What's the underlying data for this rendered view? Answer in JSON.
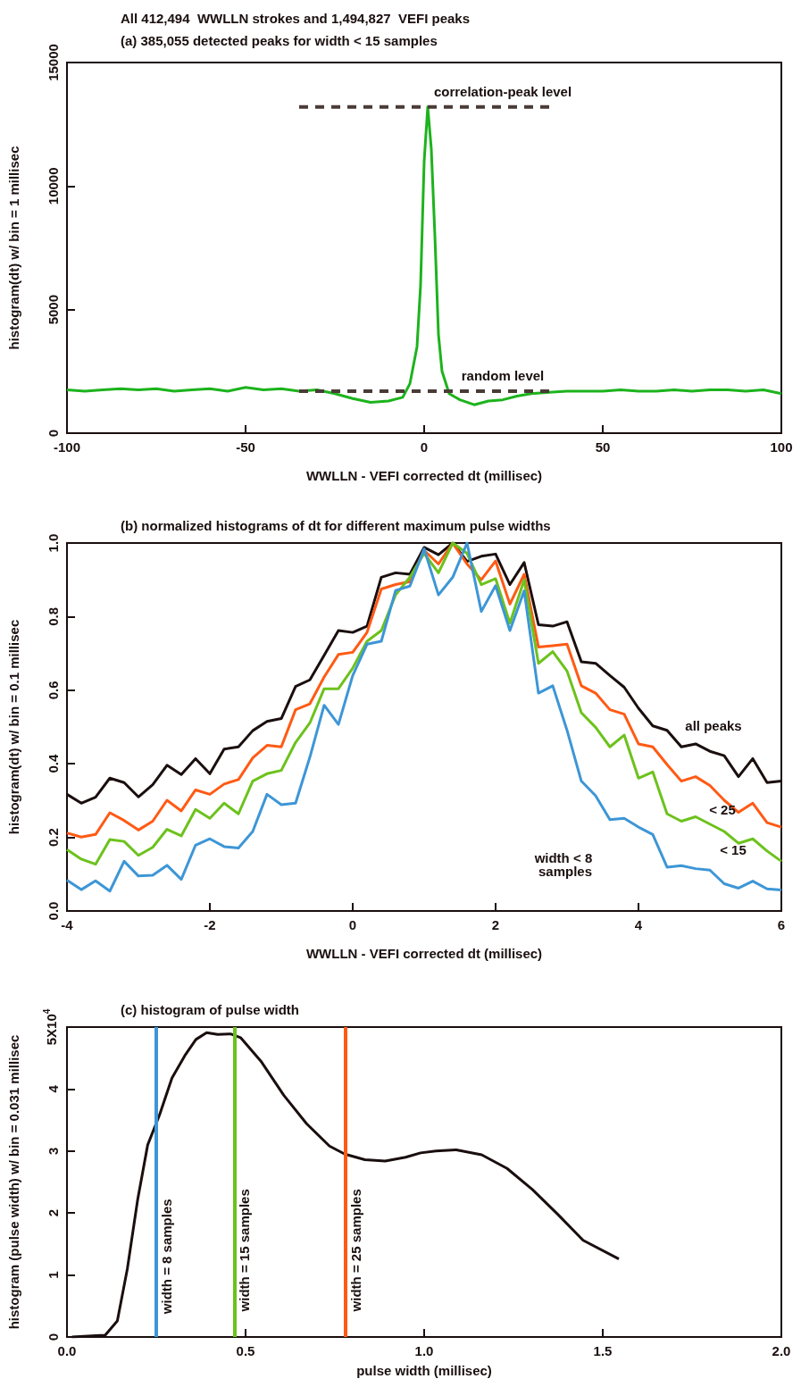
{
  "chart_data": [
    {
      "type": "line",
      "title": "All 412,494  WWLLN strokes and 1,494,827  VEFI peaks",
      "subtitle": "(a) 385,055 detected peaks for width < 15 samples",
      "xlabel": "WWLLN - VEFI corrected dt (millisec)",
      "ylabel": "histogram(dt) w/ bin = 1 millisec",
      "xlim": [
        -100,
        100
      ],
      "xticks": [
        -100,
        -50,
        0,
        50,
        100
      ],
      "ylim": [
        0,
        15000
      ],
      "yticks": [
        0,
        5000,
        10000,
        15000
      ],
      "legend": false,
      "series": [
        {
          "color": "#1db31d",
          "x": [
            -100,
            -95,
            -90,
            -85,
            -80,
            -75,
            -70,
            -65,
            -60,
            -55,
            -50,
            -45,
            -40,
            -35,
            -30,
            -25,
            -20,
            -15,
            -10,
            -6,
            -4,
            -2,
            -1,
            0,
            1,
            2,
            3,
            4,
            5,
            7,
            10,
            14,
            18,
            22,
            26,
            30,
            35,
            40,
            45,
            50,
            55,
            60,
            65,
            70,
            75,
            80,
            85,
            90,
            95,
            100
          ],
          "values": [
            1750,
            1700,
            1750,
            1800,
            1750,
            1800,
            1700,
            1750,
            1800,
            1700,
            1850,
            1750,
            1800,
            1700,
            1750,
            1600,
            1400,
            1250,
            1300,
            1450,
            2000,
            3500,
            6000,
            11000,
            13200,
            11500,
            8000,
            4000,
            2500,
            1600,
            1350,
            1150,
            1300,
            1350,
            1500,
            1600,
            1650,
            1700,
            1700,
            1700,
            1750,
            1700,
            1700,
            1750,
            1700,
            1750,
            1750,
            1700,
            1750,
            1600
          ]
        },
        {
          "color": "#4a3b36",
          "line_style": "dashed",
          "x": [
            -35,
            35
          ],
          "values": [
            13200,
            13200
          ]
        },
        {
          "color": "#4a3b36",
          "line_style": "dashed",
          "x": [
            -35,
            35
          ],
          "values": [
            1700,
            1700
          ]
        }
      ],
      "annotations": [
        {
          "text": "correlation-peak level",
          "x": 22,
          "y": 13200
        },
        {
          "text": "random level",
          "x": 22,
          "y": 1700
        }
      ]
    },
    {
      "type": "line",
      "title": "(b) normalized histograms of dt for different maximum pulse widths",
      "xlabel": "WWLLN - VEFI corrected dt (millisec)",
      "ylabel": "histogram(dt) w/ bin = 0.1 millisec",
      "xlim": [
        -4,
        6
      ],
      "xticks": [
        -4,
        -2,
        0,
        2,
        4,
        6
      ],
      "ylim": [
        0,
        1
      ],
      "yticks": [
        {
          "value": 0,
          "label": "0.0"
        },
        {
          "value": 0.2,
          "label": "0.2"
        },
        {
          "value": 0.4,
          "label": "0.4"
        },
        {
          "value": 0.6,
          "label": "0.6"
        },
        {
          "value": 0.8,
          "label": "0.8"
        },
        {
          "value": 1,
          "label": "1.0"
        }
      ],
      "legend": false,
      "x": [
        -4,
        -3.8,
        -3.6,
        -3.4,
        -3.2,
        -3,
        -2.8,
        -2.6,
        -2.4,
        -2.2,
        -2,
        -1.8,
        -1.6,
        -1.4,
        -1.2,
        -1,
        -0.8,
        -0.6,
        -0.4,
        -0.2,
        0,
        0.2,
        0.4,
        0.6,
        0.8,
        1,
        1.2,
        1.4,
        1.6,
        1.8,
        2,
        2.2,
        2.4,
        2.6,
        2.8,
        3,
        3.2,
        3.4,
        3.6,
        3.8,
        4,
        4.2,
        4.4,
        4.6,
        4.8,
        5,
        5.2,
        5.4,
        5.6,
        5.8,
        6
      ],
      "series": [
        {
          "name": "all peaks",
          "color": "#1a0e0e",
          "values": [
            0.317,
            0.293,
            0.309,
            0.361,
            0.349,
            0.31,
            0.343,
            0.396,
            0.371,
            0.414,
            0.373,
            0.44,
            0.446,
            0.49,
            0.515,
            0.523,
            0.61,
            0.628,
            0.695,
            0.762,
            0.757,
            0.774,
            0.907,
            0.919,
            0.915,
            0.988,
            0.968,
            1.0,
            0.95,
            0.964,
            0.97,
            0.887,
            0.947,
            0.778,
            0.774,
            0.786,
            0.677,
            0.673,
            0.64,
            0.608,
            0.551,
            0.503,
            0.491,
            0.446,
            0.454,
            0.434,
            0.422,
            0.365,
            0.414,
            0.349,
            0.353
          ]
        },
        {
          "name": "< 25",
          "color": "#ff5a14",
          "values": [
            0.212,
            0.201,
            0.208,
            0.267,
            0.246,
            0.22,
            0.244,
            0.301,
            0.272,
            0.329,
            0.317,
            0.345,
            0.357,
            0.416,
            0.45,
            0.446,
            0.547,
            0.563,
            0.636,
            0.697,
            0.703,
            0.757,
            0.875,
            0.887,
            0.895,
            0.98,
            0.943,
            1.0,
            0.943,
            0.9,
            0.951,
            0.834,
            0.915,
            0.717,
            0.721,
            0.725,
            0.612,
            0.592,
            0.547,
            0.535,
            0.454,
            0.446,
            0.398,
            0.353,
            0.365,
            0.341,
            0.301,
            0.268,
            0.293,
            0.24,
            0.228
          ]
        },
        {
          "name": "< 15",
          "color": "#6cc21c",
          "values": [
            0.167,
            0.141,
            0.127,
            0.194,
            0.189,
            0.151,
            0.173,
            0.222,
            0.204,
            0.276,
            0.252,
            0.293,
            0.264,
            0.353,
            0.373,
            0.382,
            0.458,
            0.511,
            0.604,
            0.604,
            0.66,
            0.733,
            0.762,
            0.859,
            0.907,
            0.972,
            0.919,
            1.0,
            0.972,
            0.887,
            0.903,
            0.782,
            0.9,
            0.673,
            0.705,
            0.652,
            0.539,
            0.499,
            0.446,
            0.478,
            0.361,
            0.378,
            0.264,
            0.244,
            0.256,
            0.236,
            0.216,
            0.184,
            0.196,
            0.163,
            0.135
          ]
        },
        {
          "name": "width < 8 samples",
          "color": "#3d96d6",
          "values": [
            0.084,
            0.058,
            0.082,
            0.054,
            0.135,
            0.095,
            0.097,
            0.124,
            0.086,
            0.179,
            0.196,
            0.175,
            0.171,
            0.216,
            0.317,
            0.289,
            0.293,
            0.418,
            0.559,
            0.507,
            0.64,
            0.725,
            0.733,
            0.871,
            0.883,
            0.984,
            0.859,
            0.907,
            1.0,
            0.814,
            0.884,
            0.762,
            0.87,
            0.592,
            0.612,
            0.491,
            0.353,
            0.313,
            0.248,
            0.252,
            0.228,
            0.208,
            0.119,
            0.123,
            0.115,
            0.111,
            0.074,
            0.062,
            0.081,
            0.06,
            0.057
          ]
        }
      ]
    },
    {
      "type": "line",
      "title": "(c) histogram of pulse width",
      "xlabel": "pulse width (millisec)",
      "ylabel": "histogram (pulse width) w/ bin = 0.031 millisec",
      "xlim": [
        0,
        2
      ],
      "xticks": [
        {
          "value": 0,
          "label": "0.0"
        },
        0.5,
        {
          "value": 1,
          "label": "1.0"
        },
        1.5,
        {
          "value": 2,
          "label": "2.0"
        }
      ],
      "ylim": [
        0,
        5
      ],
      "yticks": [
        0,
        1,
        2,
        3,
        4,
        {
          "value": 5,
          "label": "5X10$^{4}$"
        }
      ],
      "legend": false,
      "series": [
        {
          "color": "#1a0e0e",
          "x": [
            0.014,
            0.081,
            0.107,
            0.141,
            0.169,
            0.198,
            0.226,
            0.259,
            0.294,
            0.33,
            0.361,
            0.391,
            0.422,
            0.458,
            0.486,
            0.543,
            0.607,
            0.671,
            0.735,
            0.778,
            0.834,
            0.891,
            0.948,
            0.99,
            1.033,
            1.09,
            1.161,
            1.232,
            1.303,
            1.374,
            1.445,
            1.545
          ],
          "values": [
            0,
            0.02,
            0.03,
            0.26,
            1.1,
            2.22,
            3.1,
            3.58,
            4.18,
            4.54,
            4.8,
            4.91,
            4.88,
            4.89,
            4.83,
            4.45,
            3.9,
            3.44,
            3.08,
            2.95,
            2.86,
            2.84,
            2.9,
            2.97,
            3.0,
            3.02,
            2.94,
            2.72,
            2.38,
            1.98,
            1.56,
            1.26
          ]
        }
      ],
      "ref_lines": [
        {
          "axis": "x",
          "value": 0.249,
          "color": "#3d96d6"
        },
        {
          "axis": "x",
          "value": 0.466,
          "color": "#6cc21c"
        },
        {
          "axis": "x",
          "value": 0.779,
          "color": "#ff5a14"
        }
      ],
      "annotations": [
        {
          "text": "width = 8 samples",
          "x": 0.249,
          "y": 1.3
        },
        {
          "text": "width = 15 samples",
          "x": 0.466,
          "y": 1.4
        },
        {
          "text": "width = 25 samples",
          "x": 0.779,
          "y": 1.4
        }
      ]
    }
  ]
}
